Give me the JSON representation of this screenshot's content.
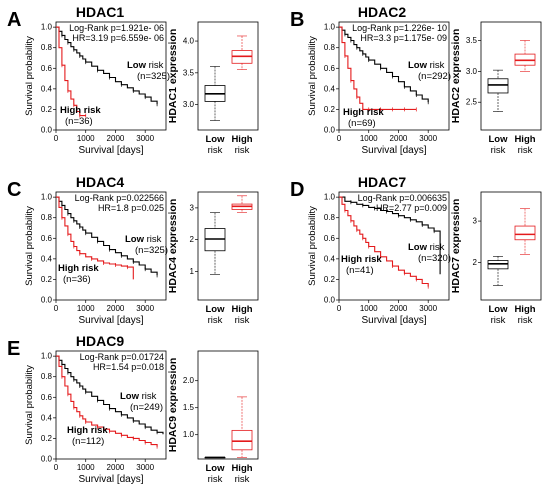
{
  "chart_data": [
    {
      "type": "line",
      "panel": "A",
      "title": "HDAC1",
      "stats": [
        "Log-Rank p=1.921e- 06",
        "HR=3.19 p=6.559e- 06"
      ],
      "xlabel": "Survival [days]",
      "ylabel": "Survival probability",
      "xlim": [
        0,
        3700
      ],
      "ylim": [
        0,
        1.05
      ],
      "xticks": [
        0,
        1000,
        2000,
        3000
      ],
      "yticks": [
        0.0,
        0.2,
        0.4,
        0.6,
        0.8,
        1.0
      ],
      "low_group": {
        "name": "Low risk",
        "n": "(n=325)"
      },
      "high_group": {
        "name": "High risk",
        "n": "(n=36)"
      },
      "series": [
        {
          "color": "#000000",
          "x": [
            0,
            100,
            200,
            300,
            400,
            500,
            600,
            700,
            800,
            900,
            1000,
            1200,
            1400,
            1600,
            1800,
            2000,
            2200,
            2400,
            2600,
            2800,
            3000,
            3200,
            3400
          ],
          "y": [
            1.0,
            0.96,
            0.92,
            0.88,
            0.85,
            0.81,
            0.78,
            0.75,
            0.72,
            0.69,
            0.66,
            0.62,
            0.58,
            0.55,
            0.51,
            0.47,
            0.44,
            0.41,
            0.38,
            0.35,
            0.32,
            0.28,
            0.25
          ]
        },
        {
          "color": "#e41a1c",
          "x": [
            0,
            100,
            200,
            300,
            400,
            500,
            600,
            700,
            800,
            900,
            1000
          ],
          "y": [
            1.0,
            0.8,
            0.63,
            0.48,
            0.38,
            0.3,
            0.24,
            0.18,
            0.14,
            0.14,
            0.14
          ]
        }
      ],
      "box": {
        "ylabel": "HDAC1 expression",
        "categories": [
          "Low\nrisk",
          "High\nrisk"
        ],
        "yticks": [
          3.0,
          3.5,
          4.0
        ],
        "ylim": [
          2.6,
          4.3
        ],
        "boxes": [
          {
            "color": "#000000",
            "min": 2.75,
            "q1": 3.05,
            "median": 3.17,
            "q3": 3.3,
            "max": 3.6
          },
          {
            "color": "#e41a1c",
            "min": 3.55,
            "q1": 3.65,
            "median": 3.76,
            "q3": 3.85,
            "max": 4.08
          }
        ]
      }
    },
    {
      "type": "line",
      "panel": "B",
      "title": "HDAC2",
      "stats": [
        "Log-Rank p=1.226e- 10",
        "HR=3.3 p=1.175e- 09"
      ],
      "xlabel": "Survival [days]",
      "ylabel": "Survival probability",
      "xlim": [
        0,
        3700
      ],
      "ylim": [
        0,
        1.05
      ],
      "xticks": [
        0,
        1000,
        2000,
        3000
      ],
      "yticks": [
        0.0,
        0.2,
        0.4,
        0.6,
        0.8,
        1.0
      ],
      "low_group": {
        "name": "Low risk",
        "n": "(n=292)"
      },
      "high_group": {
        "name": "High risk",
        "n": "(n=69)"
      },
      "series": [
        {
          "color": "#000000",
          "x": [
            0,
            100,
            200,
            300,
            400,
            500,
            600,
            700,
            800,
            900,
            1000,
            1200,
            1400,
            1600,
            1800,
            2000,
            2200,
            2400,
            2600,
            2800,
            3000
          ],
          "y": [
            1.0,
            0.97,
            0.93,
            0.9,
            0.87,
            0.83,
            0.8,
            0.77,
            0.74,
            0.71,
            0.68,
            0.64,
            0.6,
            0.56,
            0.52,
            0.47,
            0.42,
            0.38,
            0.34,
            0.3,
            0.27
          ]
        },
        {
          "color": "#e41a1c",
          "x": [
            0,
            100,
            200,
            300,
            400,
            500,
            600,
            700,
            800,
            900,
            1000,
            1200,
            1400,
            1600,
            1800,
            2000,
            2200,
            2400,
            2600
          ],
          "y": [
            1.0,
            0.85,
            0.72,
            0.6,
            0.48,
            0.4,
            0.32,
            0.26,
            0.2,
            0.2,
            0.2,
            0.2,
            0.2,
            0.2,
            0.2,
            0.2,
            0.2,
            0.2,
            0.2
          ]
        }
      ],
      "box": {
        "ylabel": "HDAC2 expression",
        "categories": [
          "Low\nrisk",
          "High\nrisk"
        ],
        "yticks": [
          2.5,
          3.0,
          3.5
        ],
        "ylim": [
          2.05,
          3.8
        ],
        "boxes": [
          {
            "color": "#000000",
            "min": 2.35,
            "q1": 2.65,
            "median": 2.78,
            "q3": 2.88,
            "max": 3.02
          },
          {
            "color": "#e41a1c",
            "min": 3.0,
            "q1": 3.1,
            "median": 3.18,
            "q3": 3.28,
            "max": 3.5
          }
        ]
      }
    },
    {
      "type": "line",
      "panel": "C",
      "title": "HDAC4",
      "stats": [
        "Log-Rank p=0.022566",
        "HR=1.8 p=0.025"
      ],
      "xlabel": "Survival [days]",
      "ylabel": "Survival probability",
      "xlim": [
        0,
        3700
      ],
      "ylim": [
        0,
        1.05
      ],
      "xticks": [
        0,
        1000,
        2000,
        3000
      ],
      "yticks": [
        0.0,
        0.2,
        0.4,
        0.6,
        0.8,
        1.0
      ],
      "low_group": {
        "name": "Low risk",
        "n": "(n=325)"
      },
      "high_group": {
        "name": "High risk",
        "n": "(n=36)"
      },
      "series": [
        {
          "color": "#000000",
          "x": [
            0,
            100,
            200,
            300,
            400,
            500,
            600,
            700,
            800,
            900,
            1000,
            1200,
            1400,
            1600,
            1800,
            2000,
            2200,
            2400,
            2600,
            2800,
            3000,
            3200,
            3400
          ],
          "y": [
            1.0,
            0.96,
            0.92,
            0.88,
            0.84,
            0.8,
            0.77,
            0.74,
            0.71,
            0.68,
            0.65,
            0.61,
            0.57,
            0.53,
            0.49,
            0.46,
            0.43,
            0.4,
            0.37,
            0.34,
            0.3,
            0.27,
            0.24
          ]
        },
        {
          "color": "#e41a1c",
          "x": [
            0,
            100,
            200,
            300,
            400,
            500,
            600,
            700,
            800,
            1000,
            1200,
            1400,
            1600,
            1800,
            2000,
            2200,
            2400,
            2600
          ],
          "y": [
            1.0,
            0.9,
            0.8,
            0.72,
            0.64,
            0.57,
            0.52,
            0.48,
            0.45,
            0.42,
            0.4,
            0.38,
            0.36,
            0.35,
            0.34,
            0.33,
            0.32,
            0.2
          ]
        }
      ],
      "box": {
        "ylabel": "HDAC4 expression",
        "categories": [
          "Low\nrisk",
          "High\nrisk"
        ],
        "yticks": [
          1,
          2,
          3
        ],
        "ylim": [
          0.1,
          3.5
        ],
        "boxes": [
          {
            "color": "#000000",
            "min": 0.9,
            "q1": 1.65,
            "median": 2.02,
            "q3": 2.35,
            "max": 2.85
          },
          {
            "color": "#e41a1c",
            "min": 2.85,
            "q1": 2.95,
            "median": 3.05,
            "q3": 3.12,
            "max": 3.38
          }
        ]
      }
    },
    {
      "type": "line",
      "panel": "D",
      "title": "HDAC7",
      "stats": [
        "Log-Rank p=0.006635",
        "HR=2.77 p=0.009"
      ],
      "xlabel": "Survival [days]",
      "ylabel": "Survival probability",
      "xlim": [
        0,
        3700
      ],
      "ylim": [
        0,
        1.05
      ],
      "xticks": [
        0,
        1000,
        2000,
        3000
      ],
      "yticks": [
        0.0,
        0.2,
        0.4,
        0.6,
        0.8,
        1.0
      ],
      "low_group": {
        "name": "Low risk",
        "n": "(n=320)"
      },
      "high_group": {
        "name": "High risk",
        "n": "(n=41)"
      },
      "series": [
        {
          "color": "#000000",
          "x": [
            0,
            200,
            400,
            600,
            800,
            1000,
            1200,
            1400,
            1600,
            1800,
            2000,
            2200,
            2400,
            2600,
            2800,
            3000,
            3200,
            3400
          ],
          "y": [
            1.0,
            0.96,
            0.95,
            0.93,
            0.92,
            0.9,
            0.89,
            0.87,
            0.86,
            0.84,
            0.82,
            0.8,
            0.78,
            0.76,
            0.73,
            0.7,
            0.67,
            0.25
          ]
        },
        {
          "color": "#e41a1c",
          "x": [
            0,
            100,
            200,
            300,
            400,
            500,
            600,
            700,
            800,
            900,
            1000,
            1200,
            1400,
            1600,
            1800,
            2000,
            2200,
            2400,
            2600,
            2800,
            3000
          ],
          "y": [
            1.0,
            0.93,
            0.87,
            0.82,
            0.77,
            0.72,
            0.68,
            0.64,
            0.6,
            0.56,
            0.52,
            0.47,
            0.42,
            0.38,
            0.33,
            0.29,
            0.26,
            0.23,
            0.2,
            0.16,
            0.13
          ]
        }
      ],
      "box": {
        "ylabel": "HDAC7 expression",
        "categories": [
          "Low\nrisk",
          "High\nrisk"
        ],
        "yticks": [
          2.0,
          3.0
        ],
        "ylim": [
          1.1,
          3.7
        ],
        "boxes": [
          {
            "color": "#000000",
            "min": 1.45,
            "q1": 1.85,
            "median": 1.97,
            "q3": 2.05,
            "max": 2.15
          },
          {
            "color": "#e41a1c",
            "min": 2.2,
            "q1": 2.55,
            "median": 2.68,
            "q3": 2.88,
            "max": 3.3
          }
        ]
      }
    },
    {
      "type": "line",
      "panel": "E",
      "title": "HDAC9",
      "stats": [
        "Log-Rank p=0.01724",
        "HR=1.54 p=0.018"
      ],
      "xlabel": "Survival [days]",
      "ylabel": "Survival probability",
      "xlim": [
        0,
        3700
      ],
      "ylim": [
        0,
        1.05
      ],
      "xticks": [
        0,
        1000,
        2000,
        3000
      ],
      "yticks": [
        0.0,
        0.2,
        0.4,
        0.6,
        0.8,
        1.0
      ],
      "low_group": {
        "name": "Low risk",
        "n": "(n=249)"
      },
      "high_group": {
        "name": "High risk",
        "n": "(n=112)"
      },
      "series": [
        {
          "color": "#000000",
          "x": [
            0,
            100,
            200,
            300,
            400,
            500,
            600,
            700,
            800,
            900,
            1000,
            1200,
            1400,
            1600,
            1800,
            2000,
            2200,
            2400,
            2600,
            2800,
            3000,
            3200,
            3400,
            3600
          ],
          "y": [
            1.0,
            0.96,
            0.92,
            0.88,
            0.84,
            0.8,
            0.77,
            0.74,
            0.71,
            0.68,
            0.65,
            0.61,
            0.57,
            0.53,
            0.49,
            0.46,
            0.43,
            0.4,
            0.37,
            0.34,
            0.31,
            0.28,
            0.26,
            0.24
          ]
        },
        {
          "color": "#e41a1c",
          "x": [
            0,
            100,
            200,
            300,
            400,
            500,
            600,
            700,
            800,
            900,
            1000,
            1200,
            1400,
            1600,
            1800,
            2000,
            2200,
            2400,
            2600,
            2800,
            3000,
            3200,
            3400
          ],
          "y": [
            1.0,
            0.9,
            0.8,
            0.71,
            0.63,
            0.56,
            0.5,
            0.46,
            0.42,
            0.39,
            0.36,
            0.33,
            0.31,
            0.29,
            0.27,
            0.25,
            0.23,
            0.21,
            0.2,
            0.18,
            0.16,
            0.14,
            0.12
          ]
        }
      ],
      "box": {
        "ylabel": "HDAC9 expression",
        "categories": [
          "Low\nrisk",
          "High\nrisk"
        ],
        "yticks": [
          1.0,
          1.5,
          2.0
        ],
        "ylim": [
          0.55,
          2.55
        ],
        "boxes": [
          {
            "color": "#000000",
            "min": 0.58,
            "q1": 0.58,
            "median": 0.58,
            "q3": 0.58,
            "max": 0.58
          },
          {
            "color": "#e41a1c",
            "min": 0.58,
            "q1": 0.72,
            "median": 0.88,
            "q3": 1.08,
            "max": 1.7
          }
        ]
      }
    }
  ]
}
